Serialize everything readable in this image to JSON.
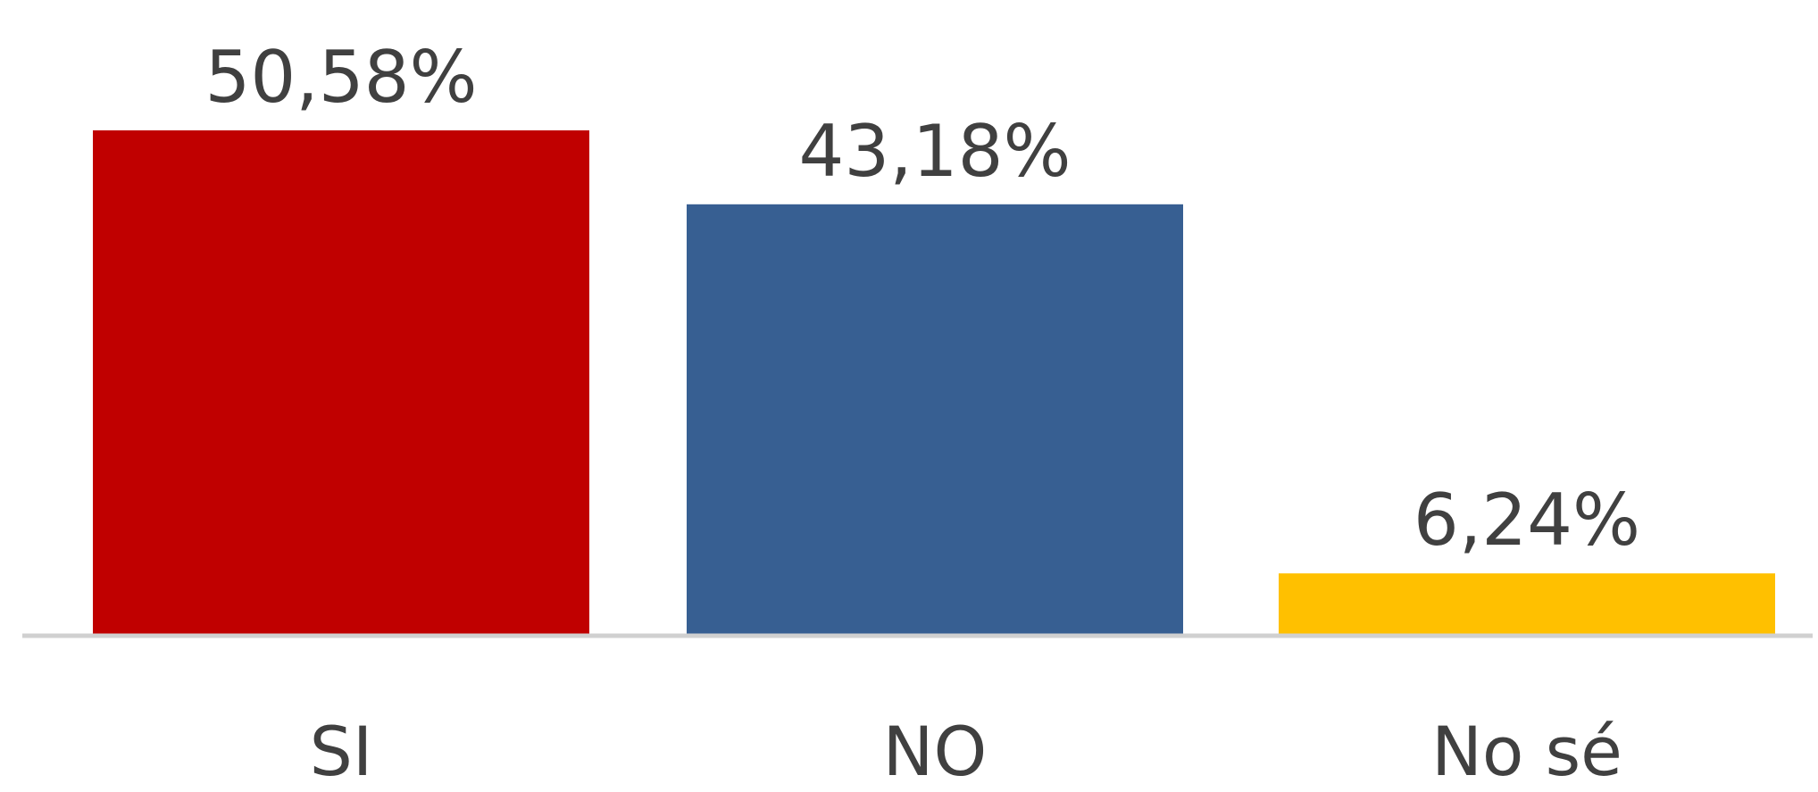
{
  "chart_data": {
    "type": "bar",
    "categories": [
      "SI",
      "NO",
      "No sé"
    ],
    "values": [
      50.58,
      43.18,
      6.24
    ],
    "data_labels": [
      "50,58%",
      "43,18%",
      "6,24%"
    ],
    "colors": [
      "#C00000",
      "#375F92",
      "#FFC000"
    ],
    "axis_color": "#D0D0D0",
    "title": "",
    "xlabel": "",
    "ylabel": "",
    "ylim": [
      0,
      52
    ],
    "grid": false,
    "legend": "none"
  }
}
